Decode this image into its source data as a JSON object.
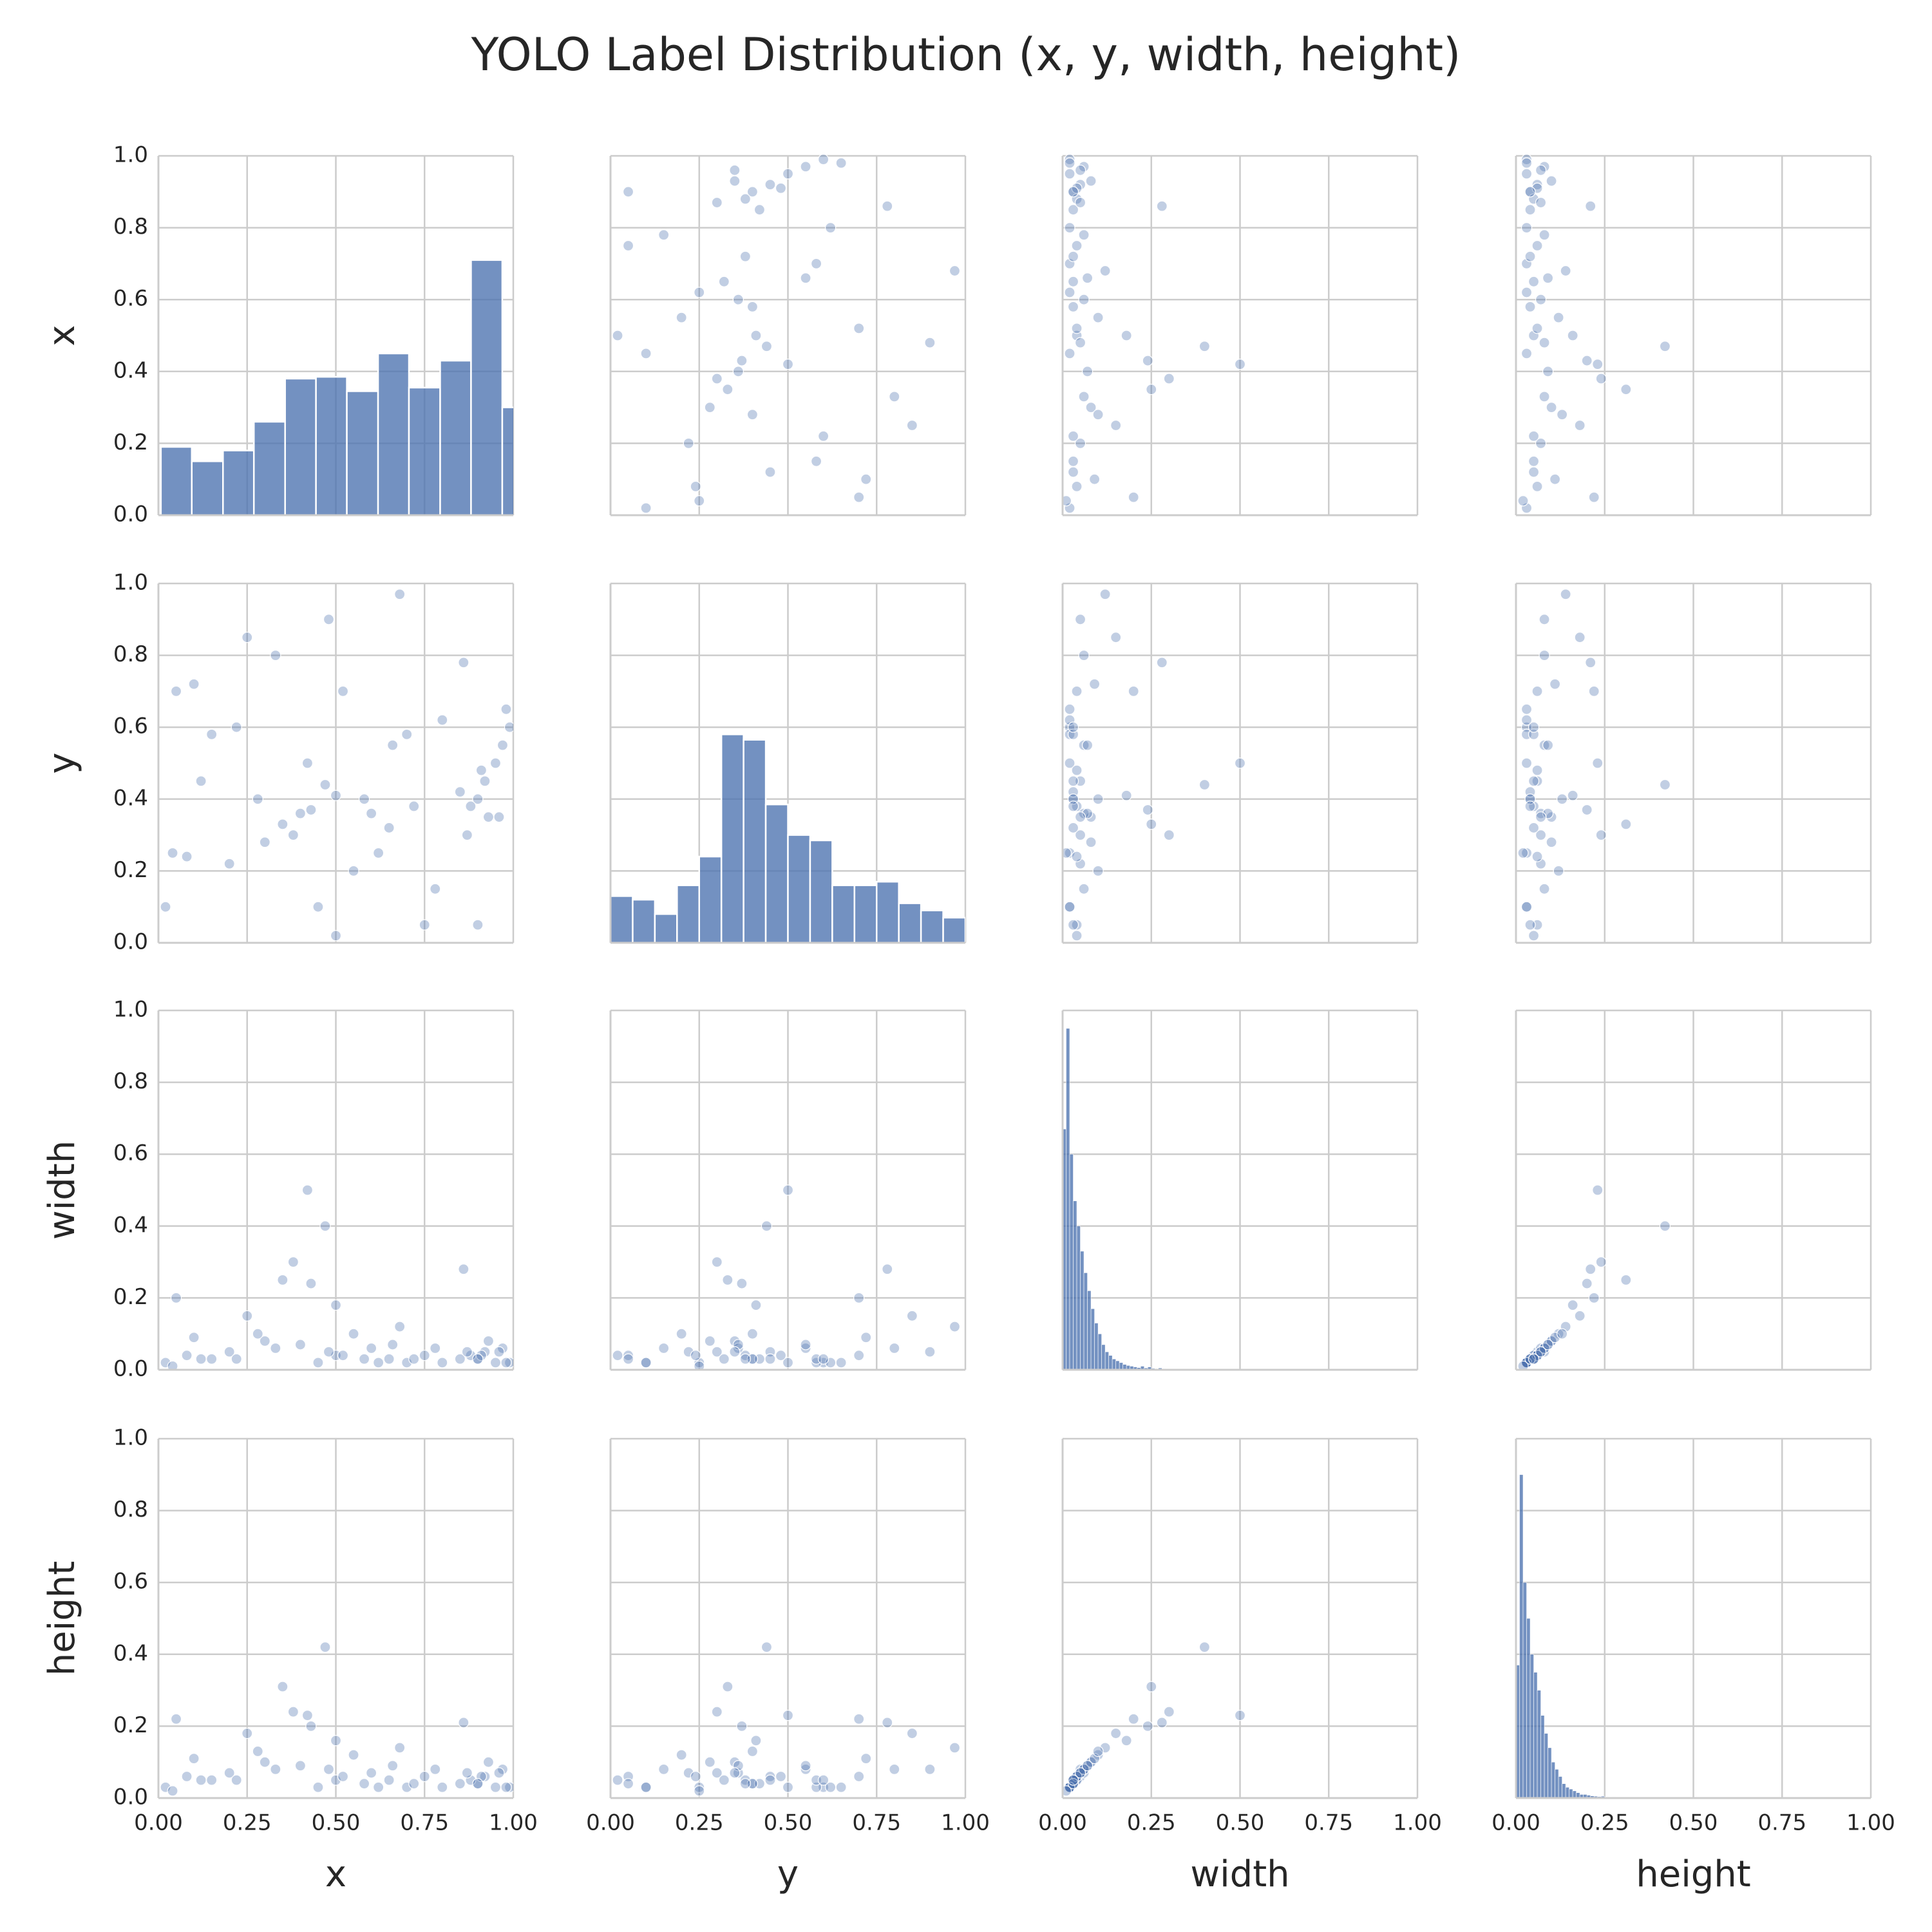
{
  "chart_data": {
    "type": "pairplot",
    "title": "YOLO Label Distribution (x, y, width, height)",
    "variables": [
      "x",
      "y",
      "width",
      "height"
    ],
    "color": "#4c72b0",
    "grid": true,
    "xlim": [
      0,
      1
    ],
    "ylim": [
      0,
      1
    ],
    "xticks": [
      {
        "value": 0,
        "label": "0.00"
      },
      {
        "value": 0.25,
        "label": "0.25"
      },
      {
        "value": 0.5,
        "label": "0.50"
      },
      {
        "value": 0.75,
        "label": "0.75"
      },
      {
        "value": 1,
        "label": "1.00"
      }
    ],
    "yticks": [
      {
        "value": 0,
        "label": "0.0"
      },
      {
        "value": 0.2,
        "label": "0.2"
      },
      {
        "value": 0.4,
        "label": "0.4"
      },
      {
        "value": 0.6,
        "label": "0.6"
      },
      {
        "value": 0.8,
        "label": "0.8"
      },
      {
        "value": 1,
        "label": "1.0"
      }
    ],
    "samples": {
      "x": [
        0.9,
        0.92,
        0.95,
        0.88,
        0.97,
        0.85,
        0.93,
        0.99,
        0.91,
        0.87,
        0.65,
        0.7,
        0.6,
        0.55,
        0.5,
        0.45,
        0.4,
        0.38,
        0.42,
        0.48,
        0.52,
        0.58,
        0.62,
        0.68,
        0.72,
        0.78,
        0.8,
        0.75,
        0.3,
        0.25,
        0.2,
        0.15,
        0.1,
        0.05,
        0.02,
        0.08,
        0.12,
        0.35,
        0.33,
        0.28,
        0.98,
        0.96,
        0.9,
        0.47,
        0.43,
        0.5,
        0.66,
        0.86,
        0.22,
        0.04
      ],
      "y": [
        0.4,
        0.45,
        0.5,
        0.38,
        0.55,
        0.42,
        0.35,
        0.6,
        0.48,
        0.3,
        0.32,
        0.58,
        0.36,
        0.2,
        0.02,
        0.1,
        0.36,
        0.3,
        0.5,
        0.9,
        0.7,
        0.4,
        0.25,
        0.97,
        0.38,
        0.15,
        0.62,
        0.05,
        0.28,
        0.85,
        0.22,
        0.58,
        0.72,
        0.7,
        0.1,
        0.24,
        0.45,
        0.33,
        0.8,
        0.4,
        0.65,
        0.35,
        0.05,
        0.44,
        0.37,
        0.41,
        0.55,
        0.78,
        0.6,
        0.25
      ],
      "width": [
        0.03,
        0.05,
        0.02,
        0.04,
        0.06,
        0.03,
        0.08,
        0.02,
        0.04,
        0.05,
        0.03,
        0.02,
        0.06,
        0.1,
        0.04,
        0.02,
        0.07,
        0.3,
        0.5,
        0.05,
        0.04,
        0.03,
        0.02,
        0.12,
        0.03,
        0.06,
        0.02,
        0.04,
        0.08,
        0.15,
        0.05,
        0.03,
        0.09,
        0.2,
        0.02,
        0.04,
        0.03,
        0.25,
        0.06,
        0.1,
        0.02,
        0.05,
        0.03,
        0.4,
        0.24,
        0.18,
        0.07,
        0.28,
        0.03,
        0.01
      ],
      "height": [
        0.04,
        0.06,
        0.03,
        0.05,
        0.08,
        0.04,
        0.1,
        0.03,
        0.06,
        0.07,
        0.05,
        0.03,
        0.07,
        0.12,
        0.05,
        0.03,
        0.09,
        0.24,
        0.23,
        0.08,
        0.06,
        0.04,
        0.03,
        0.14,
        0.04,
        0.08,
        0.03,
        0.06,
        0.1,
        0.18,
        0.07,
        0.05,
        0.11,
        0.22,
        0.03,
        0.06,
        0.05,
        0.31,
        0.08,
        0.13,
        0.03,
        0.07,
        0.04,
        0.42,
        0.2,
        0.16,
        0.09,
        0.21,
        0.05,
        0.02
      ]
    },
    "diagonal": [
      {
        "bins": [
          0.007,
          0.094,
          0.182,
          0.269,
          0.357,
          0.444,
          0.531,
          0.619,
          0.706,
          0.794,
          0.881,
          0.969,
          1.056
        ],
        "values": [
          0.19,
          0.15,
          0.18,
          0.26,
          0.38,
          0.385,
          0.345,
          0.45,
          0.355,
          0.43,
          0.71,
          0.3
        ]
      },
      {
        "bins": [
          0,
          0.0625,
          0.125,
          0.1875,
          0.25,
          0.3125,
          0.375,
          0.4375,
          0.5,
          0.5625,
          0.625,
          0.6875,
          0.75,
          0.8125,
          0.875,
          0.9375,
          1
        ],
        "values": [
          0.13,
          0.12,
          0.08,
          0.16,
          0.24,
          0.58,
          0.565,
          0.385,
          0.3,
          0.285,
          0.16,
          0.16,
          0.17,
          0.11,
          0.09,
          0.07
        ]
      },
      {
        "bins": [
          0,
          0.01,
          0.02,
          0.03,
          0.04,
          0.05,
          0.06,
          0.07,
          0.08,
          0.09,
          0.1,
          0.11,
          0.12,
          0.13,
          0.14,
          0.15,
          0.16,
          0.17,
          0.18,
          0.19,
          0.2,
          0.21,
          0.22,
          0.23,
          0.24,
          0.25,
          0.26,
          0.27,
          0.28,
          0.29,
          0.3
        ],
        "values": [
          0.67,
          0.95,
          0.6,
          0.47,
          0.4,
          0.33,
          0.27,
          0.22,
          0.17,
          0.13,
          0.1,
          0.07,
          0.05,
          0.04,
          0.03,
          0.025,
          0.02,
          0.015,
          0.012,
          0.01,
          0.008,
          0.006,
          0.01,
          0.005,
          0.008,
          0.004,
          0.003,
          0.005,
          0.003,
          0.002
        ]
      },
      {
        "bins": [
          0,
          0.01,
          0.02,
          0.03,
          0.04,
          0.05,
          0.06,
          0.07,
          0.08,
          0.09,
          0.1,
          0.11,
          0.12,
          0.13,
          0.14,
          0.15,
          0.16,
          0.17,
          0.18,
          0.19,
          0.2,
          0.21,
          0.22,
          0.23,
          0.24,
          0.25,
          0.26,
          0.27,
          0.28,
          0.29,
          0.3
        ],
        "values": [
          0.37,
          0.9,
          0.6,
          0.5,
          0.4,
          0.35,
          0.3,
          0.23,
          0.18,
          0.14,
          0.1,
          0.08,
          0.06,
          0.04,
          0.03,
          0.025,
          0.02,
          0.015,
          0.01,
          0.01,
          0.008,
          0.006,
          0.005,
          0.004,
          0.005,
          0.003,
          0.002,
          0.003,
          0.002,
          0.001
        ]
      }
    ]
  }
}
